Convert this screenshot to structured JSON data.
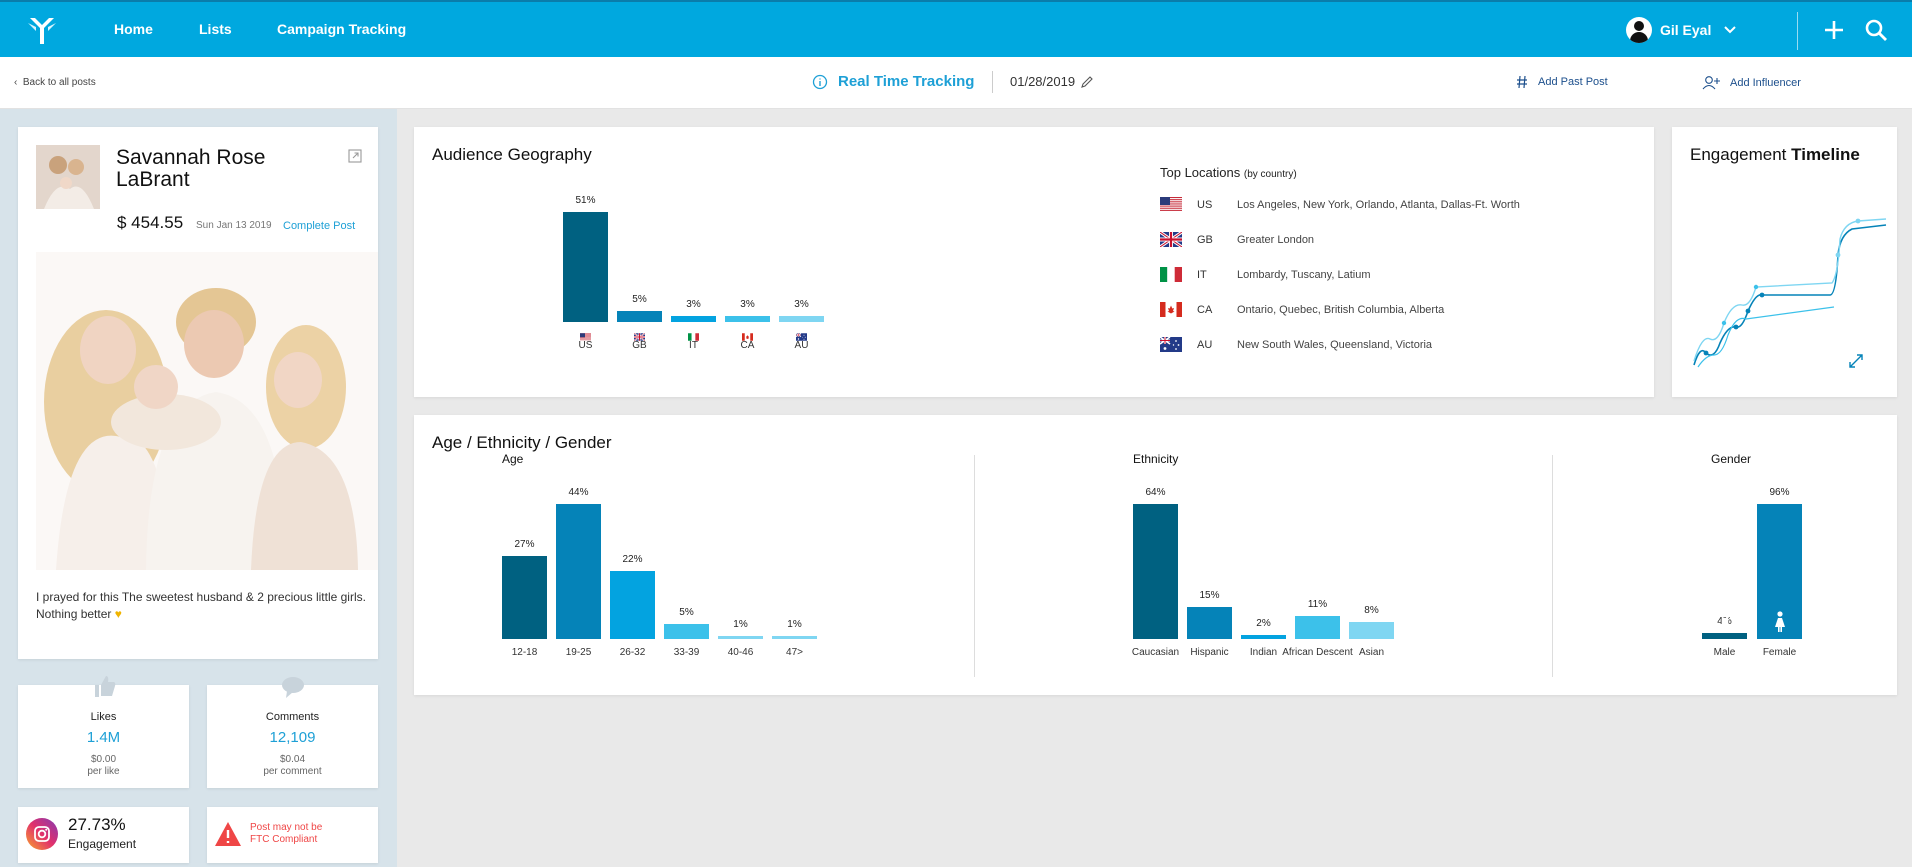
{
  "nav": {
    "home": "Home",
    "lists": "Lists",
    "campaign": "Campaign Tracking",
    "user": "Gil Eyal"
  },
  "subbar": {
    "back": "Back to all posts",
    "title": "Real Time Tracking",
    "date": "01/28/2019",
    "add_past_post": "Add Past Post",
    "add_influencer": "Add Influencer"
  },
  "post": {
    "name": "Savannah Rose LaBrant",
    "price": "$ 454.55",
    "date": "Sun Jan 13 2019",
    "link": "Complete Post",
    "caption": "I prayed for this The sweetest husband & 2 precious little girls. Nothing better"
  },
  "stats": {
    "likes": {
      "label": "Likes",
      "value": "1.4M",
      "cost": "$0.00",
      "unit": "per like"
    },
    "comments": {
      "label": "Comments",
      "value": "12,109",
      "cost": "$0.04",
      "unit": "per comment"
    }
  },
  "engagement": {
    "value": "27.73%",
    "label": "Engagement"
  },
  "ftc": {
    "line1": "Post may not be",
    "line2": "FTC Compliant"
  },
  "geo": {
    "title": "Audience Geography",
    "top_title": "Top Locations",
    "top_sub": "(by country)",
    "locations": [
      {
        "code": "US",
        "cities": "Los Angeles, New York, Orlando, Atlanta, Dallas-Ft. Worth"
      },
      {
        "code": "GB",
        "cities": "Greater London"
      },
      {
        "code": "IT",
        "cities": "Lombardy, Tuscany, Latium"
      },
      {
        "code": "CA",
        "cities": "Ontario, Quebec, British Columbia, Alberta"
      },
      {
        "code": "AU",
        "cities": "New South Wales, Queensland, Victoria"
      }
    ]
  },
  "timeline": {
    "title_a": "Engagement ",
    "title_b": "Timeline"
  },
  "demo": {
    "title": "Age / Ethnicity / Gender",
    "age": "Age",
    "ethnicity": "Ethnicity",
    "gender": "Gender"
  },
  "colors": {
    "nav": "#00a8df",
    "dark": "#006181",
    "mid": "#0583b8",
    "bright": "#03a3e0",
    "light": "#3cc1ea",
    "pale": "#7fd6f2",
    "link": "#1ea0d6"
  },
  "chart_data": [
    {
      "type": "bar",
      "chart": "geography",
      "categories": [
        "US",
        "GB",
        "IT",
        "CA",
        "AU"
      ],
      "values": [
        51,
        5,
        3,
        3,
        3
      ],
      "labels": [
        "51%",
        "5%",
        "3%",
        "3%",
        "3%"
      ]
    },
    {
      "type": "bar",
      "chart": "age",
      "categories": [
        "12-18",
        "19-25",
        "26-32",
        "33-39",
        "40-46",
        "47>"
      ],
      "values": [
        27,
        44,
        22,
        5,
        1,
        1
      ],
      "labels": [
        "27%",
        "44%",
        "22%",
        "5%",
        "1%",
        "1%"
      ]
    },
    {
      "type": "bar",
      "chart": "ethnicity",
      "categories": [
        "Caucasian",
        "Hispanic",
        "Indian",
        "African Descent",
        "Asian"
      ],
      "values": [
        64,
        15,
        2,
        11,
        8
      ],
      "labels": [
        "64%",
        "15%",
        "2%",
        "11%",
        "8%"
      ]
    },
    {
      "type": "bar",
      "chart": "gender",
      "categories": [
        "Male",
        "Female"
      ],
      "values": [
        4,
        96
      ],
      "labels": [
        "4%",
        "96%"
      ]
    },
    {
      "type": "line",
      "chart": "engagement-timeline"
    }
  ]
}
